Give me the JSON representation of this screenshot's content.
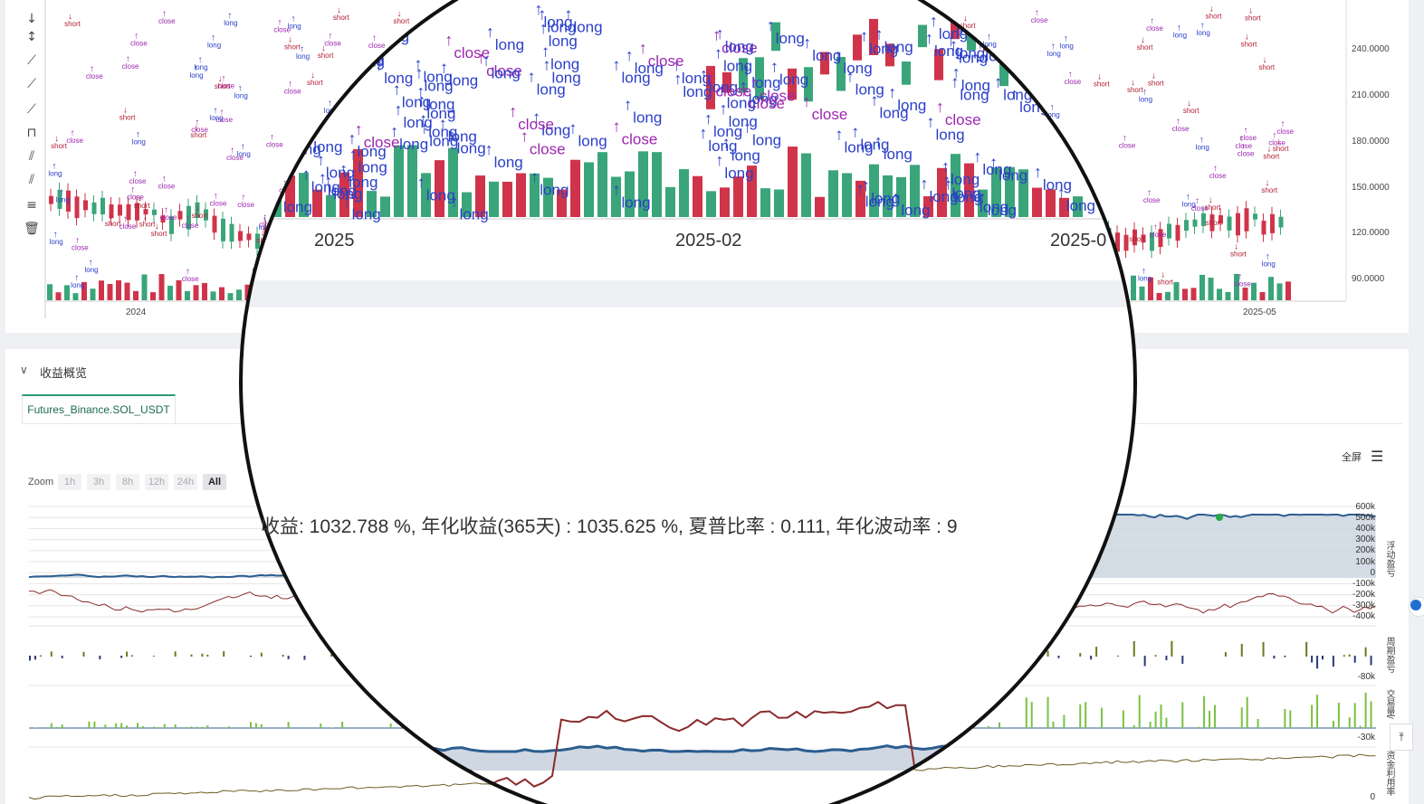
{
  "toolbar": {
    "icons": [
      "arrow-icon",
      "vertical-line-icon",
      "pen-icon",
      "line-icon",
      "ray-icon",
      "fib-icon",
      "parallel-icon",
      "channel-icon",
      "lines-icon",
      "trash-icon"
    ]
  },
  "price_chart": {
    "x_ticks": [
      "2024",
      "2025-05"
    ],
    "y_ticks": [
      "240.0000",
      "210.0000",
      "180.0000",
      "150.0000",
      "120.0000",
      "90.0000"
    ],
    "marker_labels": [
      "long",
      "short",
      "close"
    ]
  },
  "magnifier": {
    "x_ticks": [
      "2025",
      "2025-02",
      "2025-0"
    ],
    "summary": "收益: 1032.788 %, 年化收益(365天) : 1035.625 %, 夏普比率 : 0.111, 年化波动率 : 9"
  },
  "section": {
    "title": "收益概览",
    "tab_label": "Futures_Binance.SOL_USDT"
  },
  "zoom": {
    "label": "Zoom",
    "buttons": [
      "1h",
      "3h",
      "8h",
      "12h",
      "24h",
      "All"
    ],
    "active": "All"
  },
  "header": {
    "fullscreen": "全屏"
  },
  "profit_chart": {
    "y_ticks": [
      "600k",
      "500k",
      "400k",
      "300k",
      "200k",
      "100k",
      "0",
      "-100k",
      "-200k",
      "-300k",
      "-400k"
    ],
    "title": "浮动盈亏"
  },
  "period_chart": {
    "y_ticks": [
      "-80k"
    ],
    "title": "周期盈亏"
  },
  "volume_chart": {
    "y_ticks": [
      "-30k"
    ],
    "title": "交易量/"
  },
  "util_chart": {
    "y_ticks": [
      "0"
    ],
    "title": "资金利用率"
  },
  "colors": {
    "up": "#3aa57a",
    "down": "#d0344a",
    "long": "#2a3fc9",
    "short": "#b11f33",
    "close": "#9c27b0",
    "equity": "#2b5d8f",
    "benchmark": "#8b2b2b"
  }
}
